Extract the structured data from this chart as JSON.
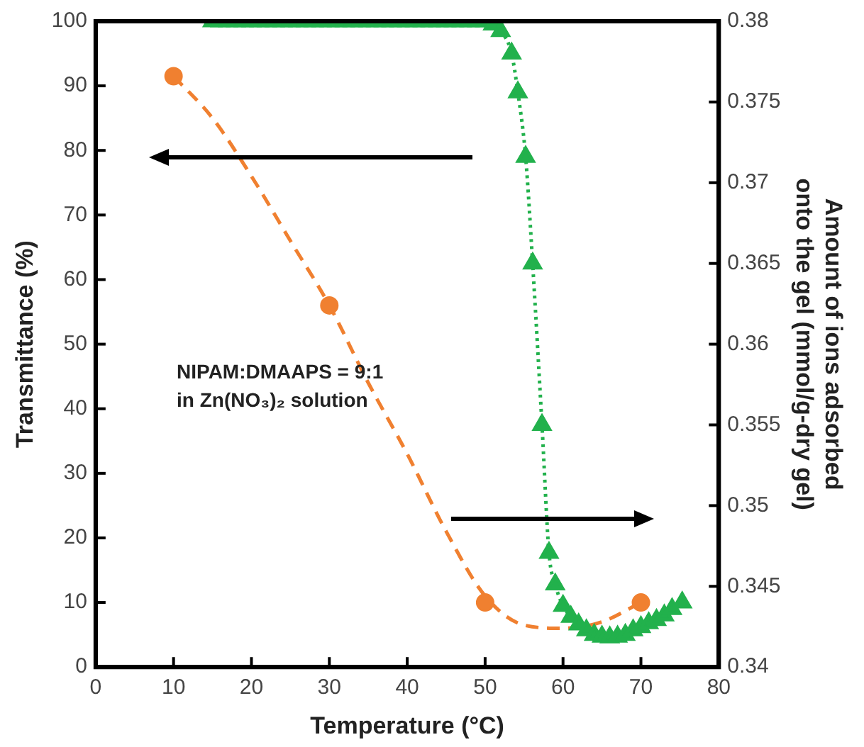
{
  "chart_data": {
    "type": "line",
    "xlabel": "Temperature (°C)",
    "ylabel": "Transmittance (%)",
    "y2label": "Amount of ions adsorbed onto the gel (mmol/g-dry gel)",
    "xlim": [
      0,
      80
    ],
    "xticks": [
      0,
      10,
      20,
      30,
      40,
      50,
      60,
      70,
      80
    ],
    "ylim": [
      0,
      100
    ],
    "yticks": [
      0,
      10,
      20,
      30,
      40,
      50,
      60,
      70,
      80,
      90,
      100
    ],
    "y2lim": [
      0.34,
      0.38
    ],
    "y2ticks": [
      0.34,
      0.345,
      0.35,
      0.355,
      0.36,
      0.365,
      0.37,
      0.375,
      0.38
    ],
    "grid": false,
    "legend": false,
    "annotations": [
      "NIPAM:DMAAPS = 9:1\nin Zn(NO₃)₂ solution"
    ],
    "series": [
      {
        "type": "line",
        "color": "#22b14c",
        "marker": "triangle",
        "line_style": "dotted",
        "x": [
          15,
          16,
          17,
          18,
          19,
          20,
          21,
          22,
          23,
          24,
          25,
          26,
          27,
          28,
          29,
          30,
          31,
          32,
          33,
          34,
          35,
          36,
          37,
          38,
          39,
          40,
          41,
          42,
          43,
          44,
          45,
          46,
          47,
          48,
          49,
          50,
          51,
          52,
          53.4,
          54.2,
          55.2,
          56.1,
          57.3,
          58.2,
          59,
          60,
          61,
          62,
          63,
          64,
          65,
          66,
          67,
          68,
          69,
          70,
          71,
          72,
          73,
          74,
          75.3
        ],
        "values": [
          100,
          100,
          100,
          100,
          100,
          100,
          100,
          100,
          100,
          100,
          100,
          100,
          100,
          100,
          100,
          100,
          100,
          100,
          100,
          100,
          100,
          100,
          100,
          100,
          100,
          100,
          100,
          100,
          100,
          100,
          100,
          100,
          100,
          100,
          100,
          100,
          99.5,
          98.5,
          95,
          89,
          79,
          62.5,
          37.5,
          17.7,
          12.8,
          9.5,
          7.8,
          6.6,
          5.7,
          5,
          4.7,
          4.6,
          4.7,
          5,
          5.7,
          6.2,
          6.8,
          7.3,
          8,
          9,
          10
        ]
      },
      {
        "type": "scatter",
        "color": "#f08030",
        "marker": "circle",
        "axis": "y2",
        "x": [
          10,
          30,
          50,
          70
        ],
        "values": [
          0.3766,
          0.3624,
          0.344,
          0.344
        ]
      },
      {
        "type": "line",
        "color": "#f08030",
        "marker": "none",
        "line_style": "dashed",
        "axis": "y2",
        "x": [
          10,
          15,
          20,
          25,
          30,
          35,
          40,
          45,
          50,
          55,
          60,
          65,
          70
        ],
        "values": [
          0.3766,
          0.374,
          0.3704,
          0.3664,
          0.3624,
          0.3576,
          0.3532,
          0.3484,
          0.3444,
          0.3426,
          0.3424,
          0.3428,
          0.344
        ]
      }
    ]
  }
}
